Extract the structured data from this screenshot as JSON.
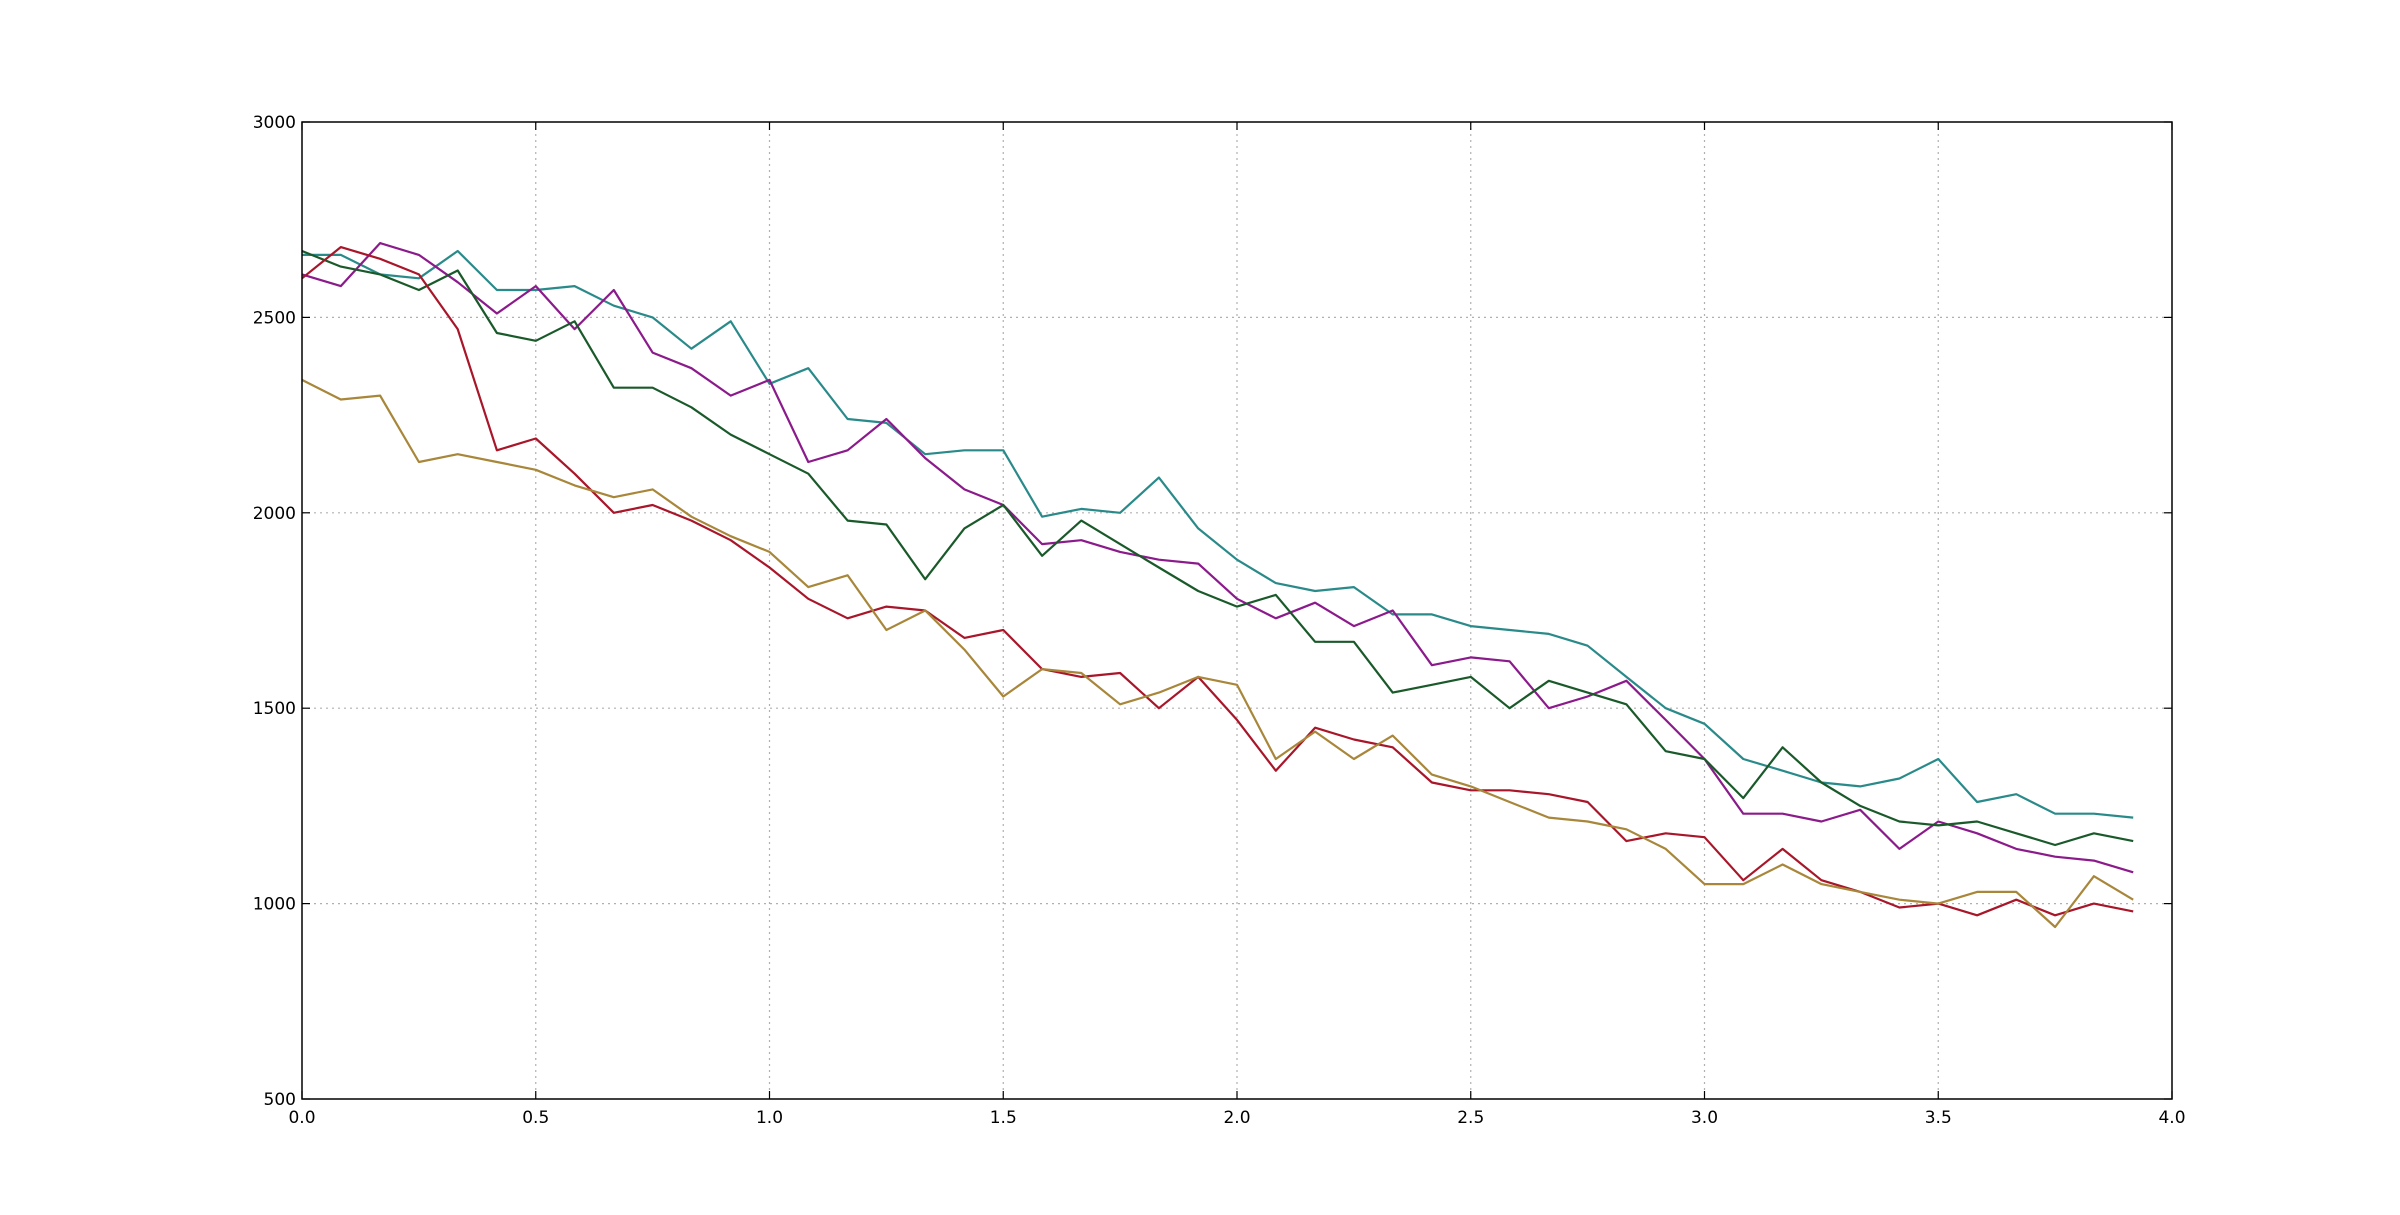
{
  "chart_data": {
    "type": "line",
    "xlim": [
      0,
      4
    ],
    "ylim": [
      500,
      3000
    ],
    "grid": true,
    "x_ticks": [
      0.0,
      0.5,
      1.0,
      1.5,
      2.0,
      2.5,
      3.0,
      3.5,
      4.0
    ],
    "x_tick_labels": [
      "0.0",
      "0.5",
      "1.0",
      "1.5",
      "2.0",
      "2.5",
      "3.0",
      "3.5",
      "4.0"
    ],
    "y_ticks": [
      500,
      1000,
      1500,
      2000,
      2500,
      3000
    ],
    "y_tick_labels": [
      "500",
      "1000",
      "1500",
      "2000",
      "2500",
      "3000"
    ],
    "x": [
      0.0,
      0.083,
      0.167,
      0.25,
      0.333,
      0.417,
      0.5,
      0.583,
      0.667,
      0.75,
      0.833,
      0.917,
      1.0,
      1.083,
      1.167,
      1.25,
      1.333,
      1.417,
      1.5,
      1.583,
      1.667,
      1.75,
      1.833,
      1.917,
      2.0,
      2.083,
      2.167,
      2.25,
      2.333,
      2.417,
      2.5,
      2.583,
      2.667,
      2.75,
      2.833,
      2.917,
      3.0,
      3.083,
      3.167,
      3.25,
      3.333,
      3.417,
      3.5,
      3.583,
      3.667,
      3.75,
      3.833,
      3.917
    ],
    "series": [
      {
        "color": "#2a8a8a",
        "values": [
          2660,
          2660,
          2610,
          2600,
          2670,
          2570,
          2570,
          2580,
          2530,
          2500,
          2420,
          2490,
          2330,
          2370,
          2240,
          2230,
          2150,
          2160,
          2160,
          1990,
          2010,
          2000,
          2090,
          1960,
          1880,
          1820,
          1800,
          1810,
          1740,
          1740,
          1710,
          1700,
          1690,
          1660,
          1580,
          1500,
          1460,
          1370,
          1340,
          1310,
          1300,
          1320,
          1370,
          1260,
          1280,
          1230,
          1230,
          1220
        ]
      },
      {
        "color": "#8b1a8b",
        "values": [
          2610,
          2580,
          2690,
          2660,
          2590,
          2510,
          2580,
          2470,
          2570,
          2410,
          2370,
          2300,
          2340,
          2130,
          2160,
          2240,
          2140,
          2060,
          2020,
          1920,
          1930,
          1900,
          1880,
          1870,
          1780,
          1730,
          1770,
          1710,
          1750,
          1610,
          1630,
          1620,
          1500,
          1530,
          1570,
          1470,
          1370,
          1230,
          1230,
          1210,
          1240,
          1140,
          1210,
          1180,
          1140,
          1120,
          1110,
          1080
        ]
      },
      {
        "color": "#1a5a2a",
        "values": [
          2670,
          2630,
          2610,
          2570,
          2620,
          2460,
          2440,
          2490,
          2320,
          2320,
          2270,
          2200,
          2150,
          2100,
          1980,
          1970,
          1830,
          1960,
          2020,
          1890,
          1980,
          1920,
          1860,
          1800,
          1760,
          1790,
          1670,
          1670,
          1540,
          1560,
          1580,
          1500,
          1570,
          1540,
          1510,
          1390,
          1370,
          1270,
          1400,
          1310,
          1250,
          1210,
          1200,
          1210,
          1180,
          1150,
          1180,
          1160
        ]
      },
      {
        "color": "#a8162a",
        "values": [
          2600,
          2680,
          2650,
          2610,
          2470,
          2160,
          2190,
          2100,
          2000,
          2020,
          1980,
          1930,
          1860,
          1780,
          1730,
          1760,
          1750,
          1680,
          1700,
          1600,
          1580,
          1590,
          1500,
          1580,
          1470,
          1340,
          1450,
          1420,
          1400,
          1310,
          1290,
          1290,
          1280,
          1260,
          1160,
          1180,
          1170,
          1060,
          1140,
          1060,
          1030,
          990,
          1000,
          970,
          1010,
          970,
          1000,
          980
        ]
      },
      {
        "color": "#a8863a",
        "values": [
          2340,
          2290,
          2300,
          2130,
          2150,
          2130,
          2110,
          2070,
          2040,
          2060,
          1990,
          1940,
          1900,
          1810,
          1840,
          1700,
          1750,
          1650,
          1530,
          1600,
          1590,
          1510,
          1540,
          1580,
          1560,
          1370,
          1440,
          1370,
          1430,
          1330,
          1300,
          1260,
          1220,
          1210,
          1190,
          1140,
          1050,
          1050,
          1100,
          1050,
          1030,
          1010,
          1000,
          1030,
          1030,
          940,
          1070,
          1010
        ]
      }
    ]
  }
}
